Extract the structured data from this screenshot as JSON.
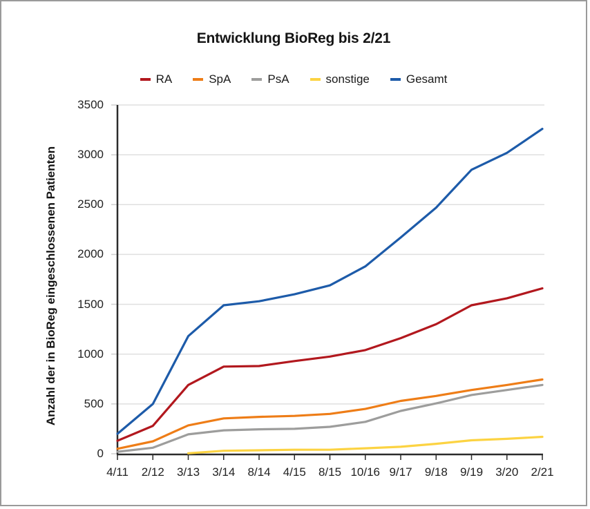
{
  "chart_data": {
    "type": "line",
    "title": "Entwicklung BioReg bis 2/21",
    "ylabel": "Anzahl der in BioReg eingeschlossenen Patienten",
    "xlabel": "",
    "ylim": [
      0,
      3500
    ],
    "ytick_step": 500,
    "grid": true,
    "legend_position": "top",
    "categories": [
      "4/11",
      "2/12",
      "3/13",
      "3/14",
      "8/14",
      "4/15",
      "8/15",
      "10/16",
      "9/17",
      "9/18",
      "9/19",
      "3/20",
      "2/21"
    ],
    "series": [
      {
        "name": "RA",
        "color": "#b2181e",
        "values": [
          130,
          280,
          690,
          875,
          880,
          930,
          975,
          1040,
          1160,
          1300,
          1490,
          1560,
          1660
        ]
      },
      {
        "name": "SpA",
        "color": "#ee7d17",
        "values": [
          50,
          125,
          285,
          355,
          370,
          380,
          400,
          450,
          530,
          580,
          640,
          690,
          745
        ]
      },
      {
        "name": "PsA",
        "color": "#9d9d9c",
        "values": [
          20,
          60,
          195,
          235,
          245,
          250,
          270,
          320,
          430,
          505,
          590,
          640,
          690
        ]
      },
      {
        "name": "sonstige",
        "color": "#fcd342",
        "values": [
          null,
          null,
          5,
          30,
          35,
          40,
          40,
          55,
          70,
          100,
          135,
          150,
          170
        ]
      },
      {
        "name": "Gesamt",
        "color": "#1d5ba9",
        "values": [
          200,
          500,
          1180,
          1490,
          1530,
          1600,
          1690,
          1880,
          2170,
          2470,
          2850,
          3020,
          3260
        ]
      }
    ],
    "colors": {
      "axis": "#2b2b2b",
      "gridline": "#dfdfdf",
      "ytick": "#cfcfcf",
      "text": "#1a1a1a"
    }
  }
}
